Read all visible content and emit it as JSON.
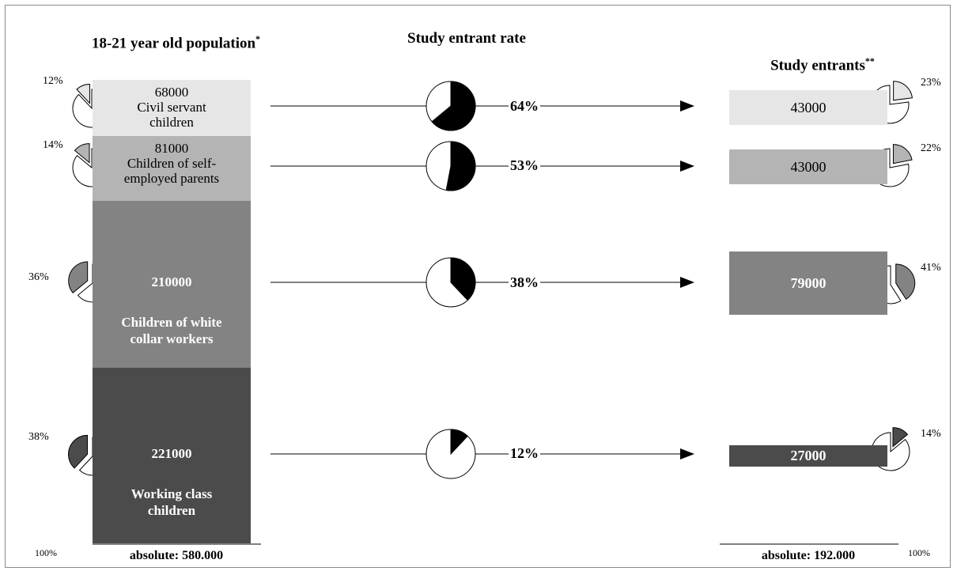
{
  "chart_data": {
    "type": "flow-pie-bar",
    "headers": {
      "population": "18-21 year old population",
      "population_mark": "*",
      "rate": "Study entrant rate",
      "entrants": "Study entrants",
      "entrants_mark": "**"
    },
    "groups": [
      {
        "id": "civil",
        "population": 68000,
        "population_label": "68000",
        "label_lines": [
          "Civil servant",
          "children"
        ],
        "population_share": 12,
        "population_share_label": "12%",
        "entrant_rate": 64,
        "entrant_rate_label": "64%",
        "entrants": 43000,
        "entrants_label": "43000",
        "entrants_share": 23,
        "entrants_share_label": "23%",
        "color": "#e6e6e6",
        "text_dark": true
      },
      {
        "id": "self",
        "population": 81000,
        "population_label": "81000",
        "label_lines": [
          "Children of self-",
          "employed parents"
        ],
        "population_share": 14,
        "population_share_label": "14%",
        "entrant_rate": 53,
        "entrant_rate_label": "53%",
        "entrants": 43000,
        "entrants_label": "43000",
        "entrants_share": 22,
        "entrants_share_label": "22%",
        "color": "#b4b4b4",
        "text_dark": true
      },
      {
        "id": "white",
        "population": 210000,
        "population_label": "210000",
        "label_lines": [
          "Children of white",
          "collar workers"
        ],
        "population_share": 36,
        "population_share_label": "36%",
        "entrant_rate": 38,
        "entrant_rate_label": "38%",
        "entrants": 79000,
        "entrants_label": "79000",
        "entrants_share": 41,
        "entrants_share_label": "41%",
        "color": "#838383",
        "text_dark": false
      },
      {
        "id": "working",
        "population": 221000,
        "population_label": "221000",
        "label_lines": [
          "Working class",
          "children"
        ],
        "population_share": 38,
        "population_share_label": "38%",
        "entrant_rate": 12,
        "entrant_rate_label": "12%",
        "entrants": 27000,
        "entrants_label": "27000",
        "entrants_share": 14,
        "entrants_share_label": "14%",
        "color": "#4b4b4b",
        "text_dark": false
      }
    ],
    "totals": {
      "population_label": "absolute: 580.000",
      "entrants_label": "absolute: 192.000",
      "percent_label": "100%"
    }
  }
}
